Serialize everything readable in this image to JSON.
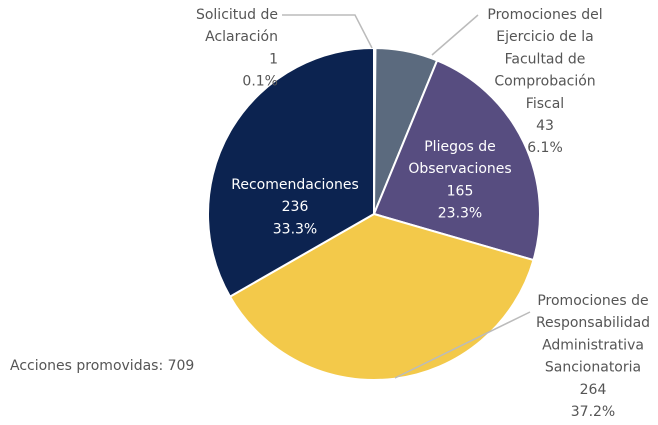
{
  "chart_data": {
    "type": "pie",
    "categories": [
      "Solicitud de Aclaración",
      "Promociones del Ejercicio de la Facultad de Comprobación Fiscal",
      "Pliegos de Observaciones",
      "Promociones de Responsabilidad Administrativa Sancionatoria",
      "Recomendaciones"
    ],
    "values": [
      1,
      43,
      165,
      264,
      236
    ],
    "percent_labels": [
      "0.1%",
      "6.1%",
      "23.3%",
      "37.2%",
      "33.3%"
    ],
    "colors": [
      "#8a96a8",
      "#5b6a7e",
      "#574d80",
      "#f3c94a",
      "#0c2350"
    ],
    "note": "Acciones promovidas: 709"
  }
}
